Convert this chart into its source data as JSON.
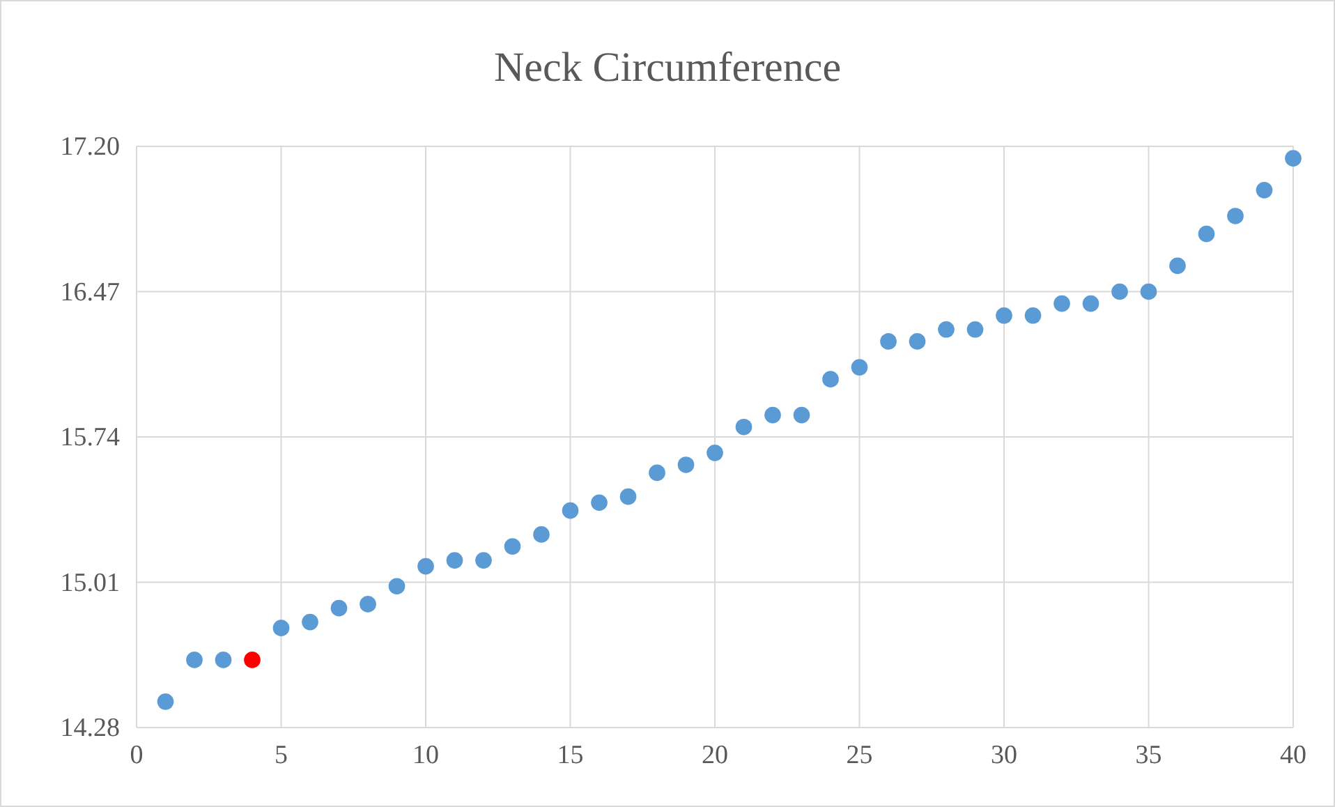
{
  "chart_data": {
    "type": "scatter",
    "title": "Neck Circumference",
    "x": [
      1,
      2,
      3,
      4,
      5,
      6,
      7,
      8,
      9,
      10,
      11,
      12,
      13,
      14,
      15,
      16,
      17,
      18,
      19,
      20,
      21,
      22,
      23,
      24,
      25,
      26,
      27,
      28,
      29,
      30,
      31,
      32,
      33,
      34,
      35,
      36,
      37,
      38,
      39,
      40
    ],
    "values": [
      14.41,
      14.62,
      14.62,
      14.62,
      14.78,
      14.81,
      14.88,
      14.9,
      14.99,
      15.09,
      15.12,
      15.12,
      15.19,
      15.25,
      15.37,
      15.41,
      15.44,
      15.56,
      15.6,
      15.66,
      15.79,
      15.85,
      15.85,
      16.03,
      16.09,
      16.22,
      16.22,
      16.28,
      16.28,
      16.35,
      16.35,
      16.41,
      16.41,
      16.47,
      16.47,
      16.6,
      16.76,
      16.85,
      16.98,
      17.14
    ],
    "colors": [
      "#5b9bd5",
      "#5b9bd5",
      "#5b9bd5",
      "#ff0000",
      "#5b9bd5",
      "#5b9bd5",
      "#5b9bd5",
      "#5b9bd5",
      "#5b9bd5",
      "#5b9bd5",
      "#5b9bd5",
      "#5b9bd5",
      "#5b9bd5",
      "#5b9bd5",
      "#5b9bd5",
      "#5b9bd5",
      "#5b9bd5",
      "#5b9bd5",
      "#5b9bd5",
      "#5b9bd5",
      "#5b9bd5",
      "#5b9bd5",
      "#5b9bd5",
      "#5b9bd5",
      "#5b9bd5",
      "#5b9bd5",
      "#5b9bd5",
      "#5b9bd5",
      "#5b9bd5",
      "#5b9bd5",
      "#5b9bd5",
      "#5b9bd5",
      "#5b9bd5",
      "#5b9bd5",
      "#5b9bd5",
      "#5b9bd5",
      "#5b9bd5",
      "#5b9bd5",
      "#5b9bd5",
      "#5b9bd5"
    ],
    "xlim": [
      0,
      40
    ],
    "xticks": [
      0,
      5,
      10,
      15,
      20,
      25,
      30,
      35,
      40
    ],
    "ylim": [
      14.28,
      17.2
    ],
    "yticks": [
      {
        "value": 14.28,
        "label": "14.28"
      },
      {
        "value": 15.01,
        "label": "15.01"
      },
      {
        "value": 15.74,
        "label": "15.74"
      },
      {
        "value": 16.47,
        "label": "16.47"
      },
      {
        "value": 17.2,
        "label": "17.20"
      }
    ],
    "grid": true,
    "marker": "circle"
  }
}
